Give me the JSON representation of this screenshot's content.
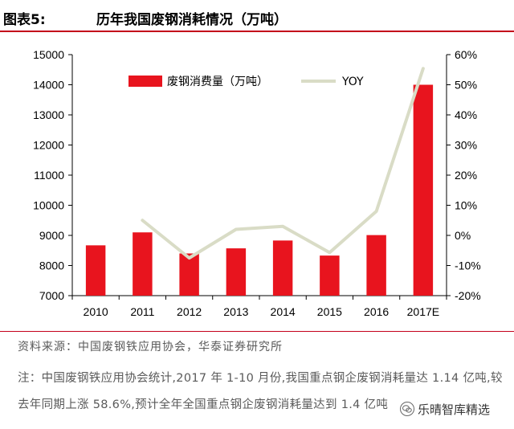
{
  "header": {
    "figure_label": "图表5:",
    "title": "历年我国废钢消耗情况（万吨）"
  },
  "colors": {
    "accent": "#c4001a",
    "bar": "#e8141e",
    "line": "#d9dcc6",
    "text_secondary": "#5a5a5a"
  },
  "chart_data": {
    "type": "bar",
    "categories": [
      "2010",
      "2011",
      "2012",
      "2013",
      "2014",
      "2015",
      "2016",
      "2017E"
    ],
    "ylim": [
      7000,
      15000
    ],
    "y_ticks": [
      "7000",
      "8000",
      "9000",
      "10000",
      "11000",
      "12000",
      "13000",
      "14000",
      "15000"
    ],
    "y2lim": [
      -20,
      60
    ],
    "y2_ticks": [
      "-20%",
      "-10%",
      "0%",
      "10%",
      "20%",
      "30%",
      "40%",
      "50%",
      "60%"
    ],
    "legend_position": "top",
    "series": [
      {
        "name": "废钢消费量（万吨）",
        "type": "bar",
        "axis": "left",
        "values": [
          8670,
          9100,
          8400,
          8570,
          8830,
          8330,
          9010,
          14000
        ]
      },
      {
        "name": "YOY",
        "type": "line",
        "axis": "right",
        "values": [
          null,
          5.0,
          -7.5,
          2.0,
          3.0,
          -5.7,
          8.0,
          55.4
        ]
      }
    ]
  },
  "footer": {
    "source": "资料来源：中国废钢铁应用协会，华泰证券研究所",
    "note": "注：中国废钢铁应用协会统计,2017 年 1-10 月份,我国重点钢企废钢消耗量达 1.14 亿吨,较去年同期上涨 58.6%,预计全年全国重点钢企废钢消耗量达到 1.4 亿吨"
  },
  "watermark": {
    "text": "乐晴智库精选",
    "icon": "wechat-icon"
  }
}
